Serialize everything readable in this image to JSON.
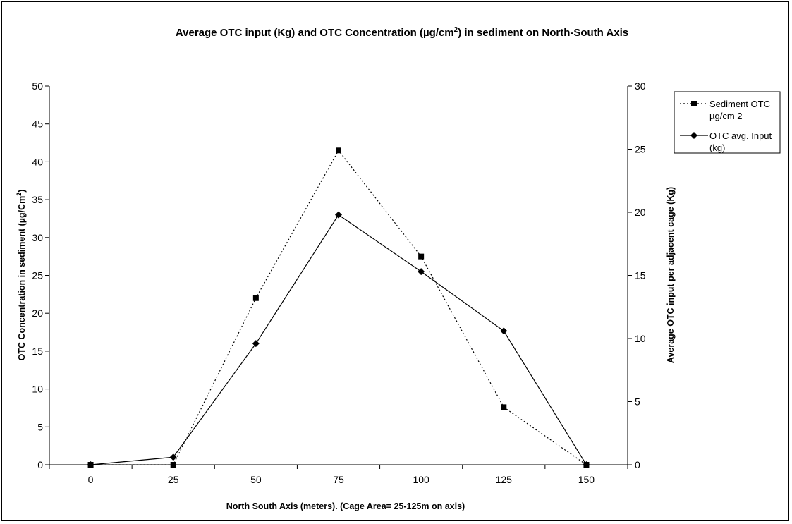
{
  "chart_data": {
    "type": "line",
    "title_main": "Average OTC input (Kg) and OTC Concentration (µg/cm",
    "title_sup": "2",
    "title_tail": ") in sediment on North-South Axis",
    "xlabel": "North South Axis (meters). (Cage Area= 25-125m on axis)",
    "ylabel_main": "OTC Concentration in sediment (µg/Cm",
    "ylabel_sup": "2",
    "ylabel_tail": ")",
    "y2label": "Average OTC input per adjacent cage (Kg)",
    "categories": [
      "0",
      "25",
      "50",
      "75",
      "100",
      "125",
      "150"
    ],
    "ylim": [
      0,
      50
    ],
    "y_ticks": [
      "0",
      "5",
      "10",
      "15",
      "20",
      "25",
      "30",
      "35",
      "40",
      "45",
      "50"
    ],
    "y2lim": [
      0,
      30
    ],
    "y2_ticks": [
      "0",
      "5",
      "10",
      "15",
      "20",
      "25",
      "30"
    ],
    "legend_position": "top-right",
    "series": [
      {
        "name": "Sediment OTC µg/cm 2",
        "legend_lines": [
          "Sediment OTC",
          "µg/cm 2"
        ],
        "axis": "left",
        "style": "dotted",
        "marker": "square",
        "color": "#000000",
        "values": [
          0,
          0,
          22,
          41.5,
          27.5,
          7.6,
          0
        ]
      },
      {
        "name": "OTC avg. Input (kg)",
        "legend_lines": [
          "OTC avg. Input",
          "(kg)"
        ],
        "axis": "right",
        "style": "solid",
        "marker": "diamond",
        "color": "#000000",
        "values": [
          0,
          0.6,
          9.6,
          19.8,
          15.3,
          10.6,
          0
        ]
      }
    ]
  }
}
